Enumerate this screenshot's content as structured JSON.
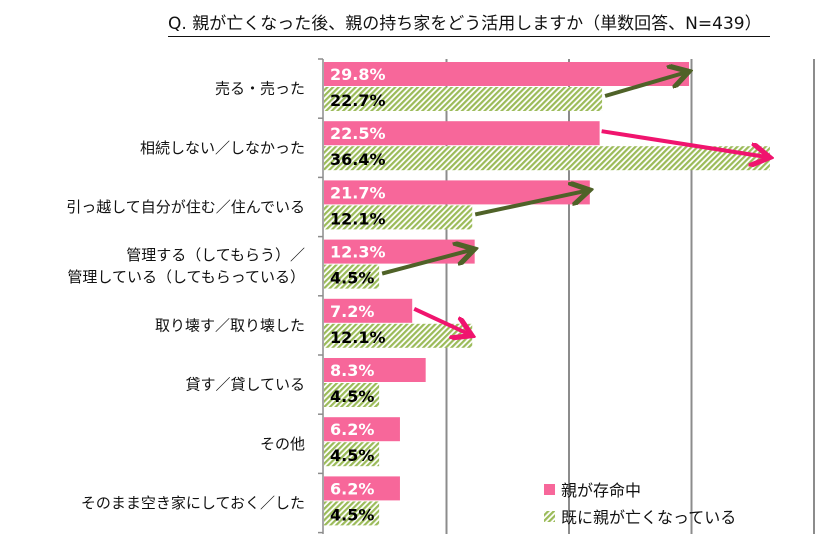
{
  "chart_data": {
    "type": "bar",
    "orientation": "horizontal",
    "title": "Q. 親が亡くなった後、親の持ち家をどう活用しますか（単数回答、N=439）",
    "categories": [
      [
        "売る・売った"
      ],
      [
        "相続しない／しなかった"
      ],
      [
        "引っ越して自分が住む／住んでいる"
      ],
      [
        "管理する（してもらう）／",
        "管理している（してもらっている）"
      ],
      [
        "取り壊す／取り壊した"
      ],
      [
        "貸す／貸している"
      ],
      [
        "その他"
      ],
      [
        "そのまま空き家にしておく／した"
      ]
    ],
    "series": [
      {
        "name": "親が存命中",
        "values": [
          29.8,
          22.5,
          21.7,
          12.3,
          7.2,
          8.3,
          6.2,
          6.2
        ],
        "color": "#f7679a",
        "fill": "solid"
      },
      {
        "name": "既に親が亡くなっている",
        "values": [
          22.7,
          36.4,
          12.1,
          4.5,
          12.1,
          4.5,
          4.5,
          4.5
        ],
        "color": "#9bbb59",
        "fill": "diagonal-hatch"
      }
    ],
    "value_format": "%",
    "xlim": [
      0,
      40
    ],
    "grid": true,
    "legend": "bottom-right",
    "arrows": {
      "increase_color": "#f0146e",
      "decrease_color": "#4f6228",
      "rows": [
        0,
        1,
        2,
        3,
        4
      ]
    }
  }
}
